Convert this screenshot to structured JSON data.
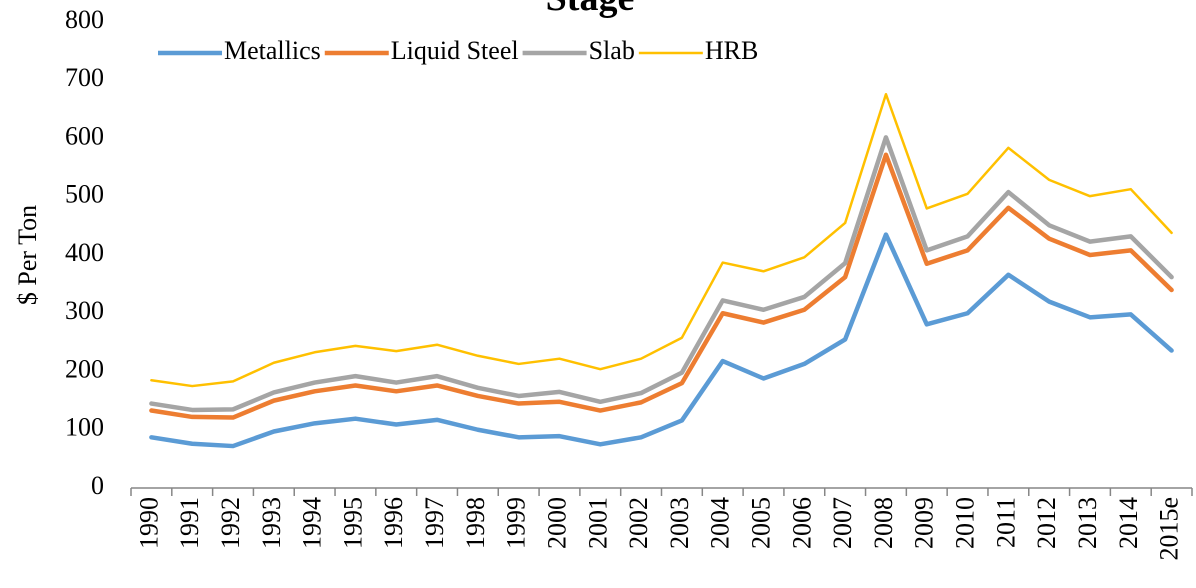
{
  "chart_data": {
    "type": "line",
    "title": "Stage",
    "ylabel": "$ Per Ton",
    "categories": [
      "1990",
      "1991",
      "1992",
      "1993",
      "1994",
      "1995",
      "1996",
      "1997",
      "1998",
      "1999",
      "2000",
      "2001",
      "2002",
      "2003",
      "2004",
      "2005",
      "2006",
      "2007",
      "2008",
      "2009",
      "2010",
      "2011",
      "2012",
      "2013",
      "2014",
      "2015e"
    ],
    "series": [
      {
        "name": "Metallics",
        "color": "#5b9bd5",
        "values": [
          87,
          76,
          72,
          97,
          111,
          119,
          109,
          117,
          100,
          87,
          89,
          75,
          87,
          116,
          218,
          188,
          213,
          255,
          435,
          281,
          300,
          366,
          320,
          293,
          298,
          236
        ]
      },
      {
        "name": "Liquid Steel",
        "color": "#ed7d31",
        "values": [
          133,
          122,
          121,
          150,
          166,
          176,
          166,
          176,
          158,
          145,
          148,
          133,
          147,
          180,
          300,
          284,
          306,
          362,
          572,
          385,
          408,
          481,
          428,
          400,
          408,
          340
        ]
      },
      {
        "name": "Slab",
        "color": "#a5a5a5",
        "values": [
          145,
          134,
          135,
          164,
          181,
          192,
          181,
          192,
          172,
          158,
          165,
          148,
          163,
          198,
          322,
          306,
          328,
          386,
          602,
          408,
          432,
          508,
          451,
          423,
          432,
          362
        ]
      },
      {
        "name": "HRB",
        "color": "#ffc000",
        "values": [
          185,
          175,
          183,
          215,
          233,
          244,
          235,
          246,
          227,
          213,
          222,
          204,
          222,
          258,
          387,
          372,
          396,
          455,
          676,
          480,
          505,
          584,
          529,
          501,
          513,
          438
        ]
      }
    ],
    "ylim": [
      0,
      800
    ],
    "yticks": [
      0,
      100,
      200,
      300,
      400,
      500,
      600,
      700,
      800
    ],
    "grid": false,
    "legend": "top-left"
  }
}
